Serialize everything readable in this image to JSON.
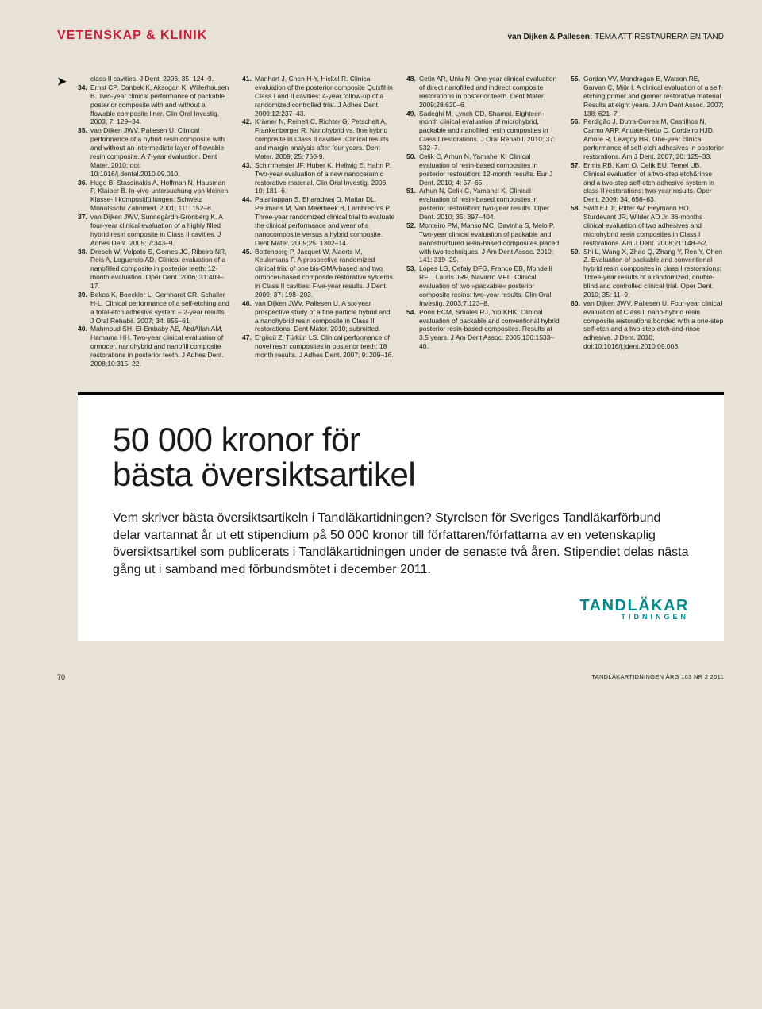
{
  "header": {
    "section_title": "VETENSKAP & KLINIK",
    "byline_bold": "van Dijken & Pallesen:",
    "byline_light": "TEMA ATT RESTAURERA EN TAND"
  },
  "references": {
    "lead_text": "class II cavities. J Dent. 2006; 35: 124–9.",
    "items": [
      {
        "num": "34.",
        "text": "Ernst CP, Canbek K, Aksogan K, Willerhausen B. Two-year clinical performance of packable posterior composite with and without a flowable composite liner. Clin Oral Investig. 2003; 7: 129–34."
      },
      {
        "num": "35.",
        "text": "van Dijken JWV, Pallesen U. Clinical performance of a hybrid resin composite with and without an intermediate layer of flowable resin composite. A 7-year evaluation. Dent Mater. 2010; doi: 10:1016/j.dental.2010.09.010."
      },
      {
        "num": "36.",
        "text": "Hugo B, Stassinakis A, Hoffman N, Hausman P, Klaiber B. In-vivo-untersuchung von kleinen Klasse-II kompositfüllungen. Schweiz Monatsschr Zahnmed. 2001; 111: 152–8."
      },
      {
        "num": "37.",
        "text": "van Dijken JWV, Sunnegårdh-Grönberg K. A four-year clinical evaluation of a highly filled hybrid resin composite in Class II cavities. J Adhes Dent. 2005; 7:343–9."
      },
      {
        "num": "38.",
        "text": "Dresch W, Volpato S, Gomes JC, Ribeiro NR, Reis A, Loguercio AD. Clinical evaluation of a nanofilled composite in posterior teeth: 12-month evaluation. Oper Dent. 2006; 31:409–17."
      },
      {
        "num": "39.",
        "text": "Bekes K, Boeckler L, Gernhardt CR, Schaller H-L. Clinical performance of a self-etching and a total-etch adhesive system – 2-year results. J Oral Rehabil. 2007; 34: 855–61."
      },
      {
        "num": "40.",
        "text": "Mahmoud SH, El-Embaby AE, AbdAllah AM, Hamama HH. Two-year clinical evaluation of ormocer, nanohybrid and nanofill composite restorations in posterior teeth. J Adhes Dent. 2008;10:315–22."
      },
      {
        "num": "41.",
        "text": "Manhart J, Chen H-Y, Hickel R. Clinical evaluation of the posterior composite Quixfil in Class I and II cavities: 4-year follow-up of a randomized controlled trial. J Adhes Dent. 2009;12:237–43."
      },
      {
        "num": "42.",
        "text": "Krämer N, Reinelt C, Richter G, Petschelt A, Frankenberger R. Nanohybrid vs. fine hybrid composite in Class II cavities. Clinical results and margin analysis after four years. Dent Mater. 2009; 25: 750-9."
      },
      {
        "num": "43.",
        "text": "Schirrmeister JF, Huber K, Hellwig E, Hahn P. Two-year evaluation of a new nanoceramic restorative material. Clin Oral Investig. 2006; 10: 181–6."
      },
      {
        "num": "44.",
        "text": "Palaniappan S, Bharadwaj D, Mattar DL, Peumans M, Van Meerbeek B, Lambrechts P. Three-year randomized clinical trial to evaluate the clinical performance and wear of a nanocomposite versus a hybrid composite. Dent Mater. 2009;25: 1302–14."
      },
      {
        "num": "45.",
        "text": "Bottenberg P, Jacquet W, Alaerts M, Keulemans F. A prospective randomized clinical trial of one bis-GMA-based and two ormocer-based composite restorative systems in Class II cavities: Five-year results. J Dent. 2009; 37: 198–203."
      },
      {
        "num": "46.",
        "text": "van Dijken JWV, Pallesen U. A six-year prospective study of a fine particle hybrid and a nanohybrid resin composite in Class II restorations. Dent Mater. 2010; submitted."
      },
      {
        "num": "47.",
        "text": "Ergücü Z, Türkün LS. Clinical performance of novel resin composites in posterior teeth: 18 month results. J Adhes Dent. 2007; 9: 209–16."
      },
      {
        "num": "48.",
        "text": "Cetin AR, Unlu N. One-year clinical evaluation of direct nanofilled and indirect composite restorations in posterior teeth. Dent Mater. 2009;28:620–6."
      },
      {
        "num": "49.",
        "text": "Sadeghi M, Lynch CD, Shamat. Eighteen-month clinical evaluation of microhybrid, packable and nanofiled resin composites in Class I restorations. J Oral Rehabil. 2010; 37: 532–7."
      },
      {
        "num": "50.",
        "text": "Celik C, Arhun N, Yamahel K. Clinical evaluation of resin-based composites in posterior restoration: 12-month results. Eur J Dent. 2010; 4: 57–65."
      },
      {
        "num": "51.",
        "text": "Arhun N, Celik C, Yamahel K. Clinical evaluation of resin-based composites in posterior restoration: two-year results. Oper Dent. 2010; 35: 397–404."
      },
      {
        "num": "52.",
        "text": "Monteiro PM, Manso MC, Gavinha S, Melo P. Two-year clinical evaluation of packable and nanostructured resin-based composites placed with two techniques. J Am Dent Assoc. 2010; 141: 319–29."
      },
      {
        "num": "53.",
        "text": "Lopes LG, Cefaly DFG, Franco EB, Mondelli RFL, Lauris JRP, Navarro MFL. Clinical evaluation of two »packable« posterior composite resins: two-year results. Clin Oral Investig. 2003;7:123–8."
      },
      {
        "num": "54.",
        "text": "Poon ECM, Smales RJ, Yip KHK. Clinical evaluation of packable and conventional hybrid posterior resin-based composites. Results at 3.5 years. J Am Dent Assoc. 2005;136:1533–40."
      },
      {
        "num": "55.",
        "text": "Gordan VV, Mondragan E, Watson RE, Garvan C, Mjör I. A clinical evaluation of a self-etching primer and giomer restorative material. Results at eight years. J Am Dent Assoc. 2007; 138: 621–7."
      },
      {
        "num": "56.",
        "text": "Perdigão J, Dutra-Correa M, Castilhos N, Carmo ARP, Anuate-Netto C, Cordeiro HJD, Amore R, Lewgoy HR. One-year clinical performance of self-etch adhesives in posterior restorations. Am J Dent. 2007; 20: 125–33."
      },
      {
        "num": "57.",
        "text": "Ermis RB, Kam O, Celik EU, Temel UB. Clinical evaluation of a two-step etch&rinse and a two-step self-etch adhesive system in class II restorations: two-year results. Oper Dent. 2009; 34: 656–63."
      },
      {
        "num": "58.",
        "text": "Swift EJ Jr, Ritter AV, Heymann HO, Sturdevant JR, Wilder AD Jr. 36-months clinical evaluation of two adhesives and microhybrid resin composites in Class I restorations. Am J Dent. 2008;21:148–52."
      },
      {
        "num": "59.",
        "text": "Shi L, Wang X, Zhao Q, Zhang Y, Ren Y, Chen Z. Evaluation of packable and conventional hybrid resin composites in class I restorations: Three-year results of a randomized, double-blind and controlled clinical trial. Oper Dent. 2010; 35: 11–9."
      },
      {
        "num": "60.",
        "text": "van Dijken JWV, Pallesen U. Four-year clinical evaluation of Class II nano-hybrid resin composite restorations bonded with a one-step self-etch and a two-step etch-and-rinse adhesive. J Dent. 2010; doi:10.1016/j.jdent.2010.09.006."
      }
    ]
  },
  "promo": {
    "title_line1": "50 000 kronor för",
    "title_line2": "bästa översiktsartikel",
    "body": "Vem skriver bästa översiktsartikeln i Tandläkartidningen? Styrelsen för Sveriges Tandläkarförbund delar vartannat år ut ett stipendium på 50 000 kronor till författaren/författarna av en vetenskaplig översiktsartikel som publicerats i Tandläkartidningen under de senaste två åren. Stipendiet delas nästa gång ut i samband med förbundsmötet i december 2011.",
    "logo_main": "TANDLÄKAR",
    "logo_sub": "TIDNINGEN"
  },
  "footer": {
    "page_number": "70",
    "right": "TANDLÄKARTIDNINGEN ÅRG 103 NR 2 2011"
  },
  "colors": {
    "background": "#e8e2d6",
    "accent_red": "#c41e3a",
    "accent_teal": "#008a8a",
    "promo_bg": "#ffffff",
    "text": "#1a1a1a"
  },
  "typography": {
    "header_title_size": 16,
    "header_byline_size": 10,
    "ref_size": 8.5,
    "promo_title_size": 42,
    "promo_body_size": 16,
    "footer_size": 9
  }
}
